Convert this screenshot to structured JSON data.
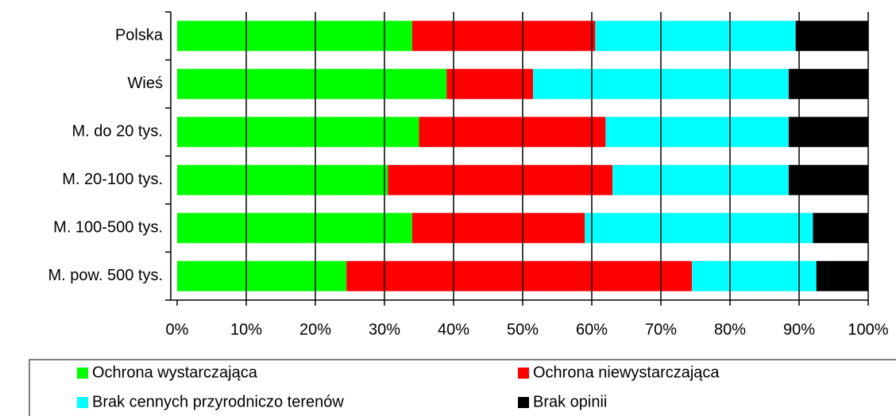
{
  "chart_data": {
    "type": "stacked-barh",
    "categories": [
      "Polska",
      "Wieś",
      "M. do 20 tys.",
      "M. 20-100 tys.",
      "M. 100-500 tys.",
      "M. pow. 500 tys."
    ],
    "series": [
      {
        "name": "Ochrona wystarczająca",
        "color": "#00ff00",
        "values": [
          34,
          39,
          35,
          30.5,
          34,
          24.5
        ]
      },
      {
        "name": "Ochrona niewystarczająca",
        "color": "#ff0000",
        "values": [
          26.5,
          12.5,
          27,
          32.5,
          25,
          50
        ]
      },
      {
        "name": "Brak cennych przyrodniczo terenów",
        "color": "#00ffff",
        "values": [
          29,
          37,
          26.5,
          25.5,
          33,
          18
        ]
      },
      {
        "name": "Brak opinii",
        "color": "#000000",
        "values": [
          10.5,
          11.5,
          11.5,
          11.5,
          8,
          7.5
        ]
      }
    ],
    "xlim": [
      0,
      100
    ],
    "xticks": [
      {
        "value": 0,
        "label": "0%"
      },
      {
        "value": 10,
        "label": "10%"
      },
      {
        "value": 20,
        "label": "20%"
      },
      {
        "value": 30,
        "label": "30%"
      },
      {
        "value": 40,
        "label": "40%"
      },
      {
        "value": 50,
        "label": "50%"
      },
      {
        "value": 60,
        "label": "60%"
      },
      {
        "value": 70,
        "label": "70%"
      },
      {
        "value": 80,
        "label": "80%"
      },
      {
        "value": 90,
        "label": "90%"
      },
      {
        "value": 100,
        "label": "100%"
      }
    ],
    "grid": true,
    "legend": "bottom"
  }
}
